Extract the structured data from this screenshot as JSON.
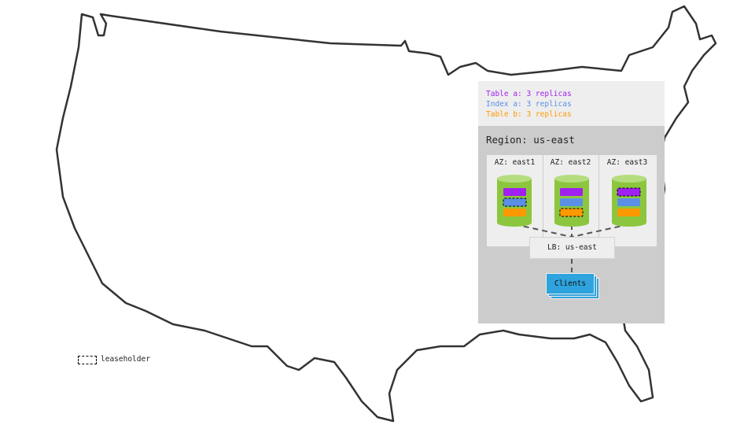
{
  "legend": [
    {
      "label": "Table a: 3 replicas",
      "color": "#a020f0"
    },
    {
      "label": "Index a: 3 replicas",
      "color": "#5b8fe6"
    },
    {
      "label": "Table b: 3 replicas",
      "color": "#ff9900"
    }
  ],
  "region": "Region: us-east",
  "azs": [
    {
      "label": "AZ: east1",
      "leaseholder": "index a"
    },
    {
      "label": "AZ: east2",
      "leaseholder": "table b"
    },
    {
      "label": "AZ: east3",
      "leaseholder": "table a"
    }
  ],
  "lb": "LB: us-east",
  "clients": "Clients",
  "key": {
    "label": "leaseholder"
  },
  "colors": {
    "cylinder": "#8cc63f",
    "cylinder_top": "#b5dd80",
    "clients": "#2ea3dd"
  }
}
